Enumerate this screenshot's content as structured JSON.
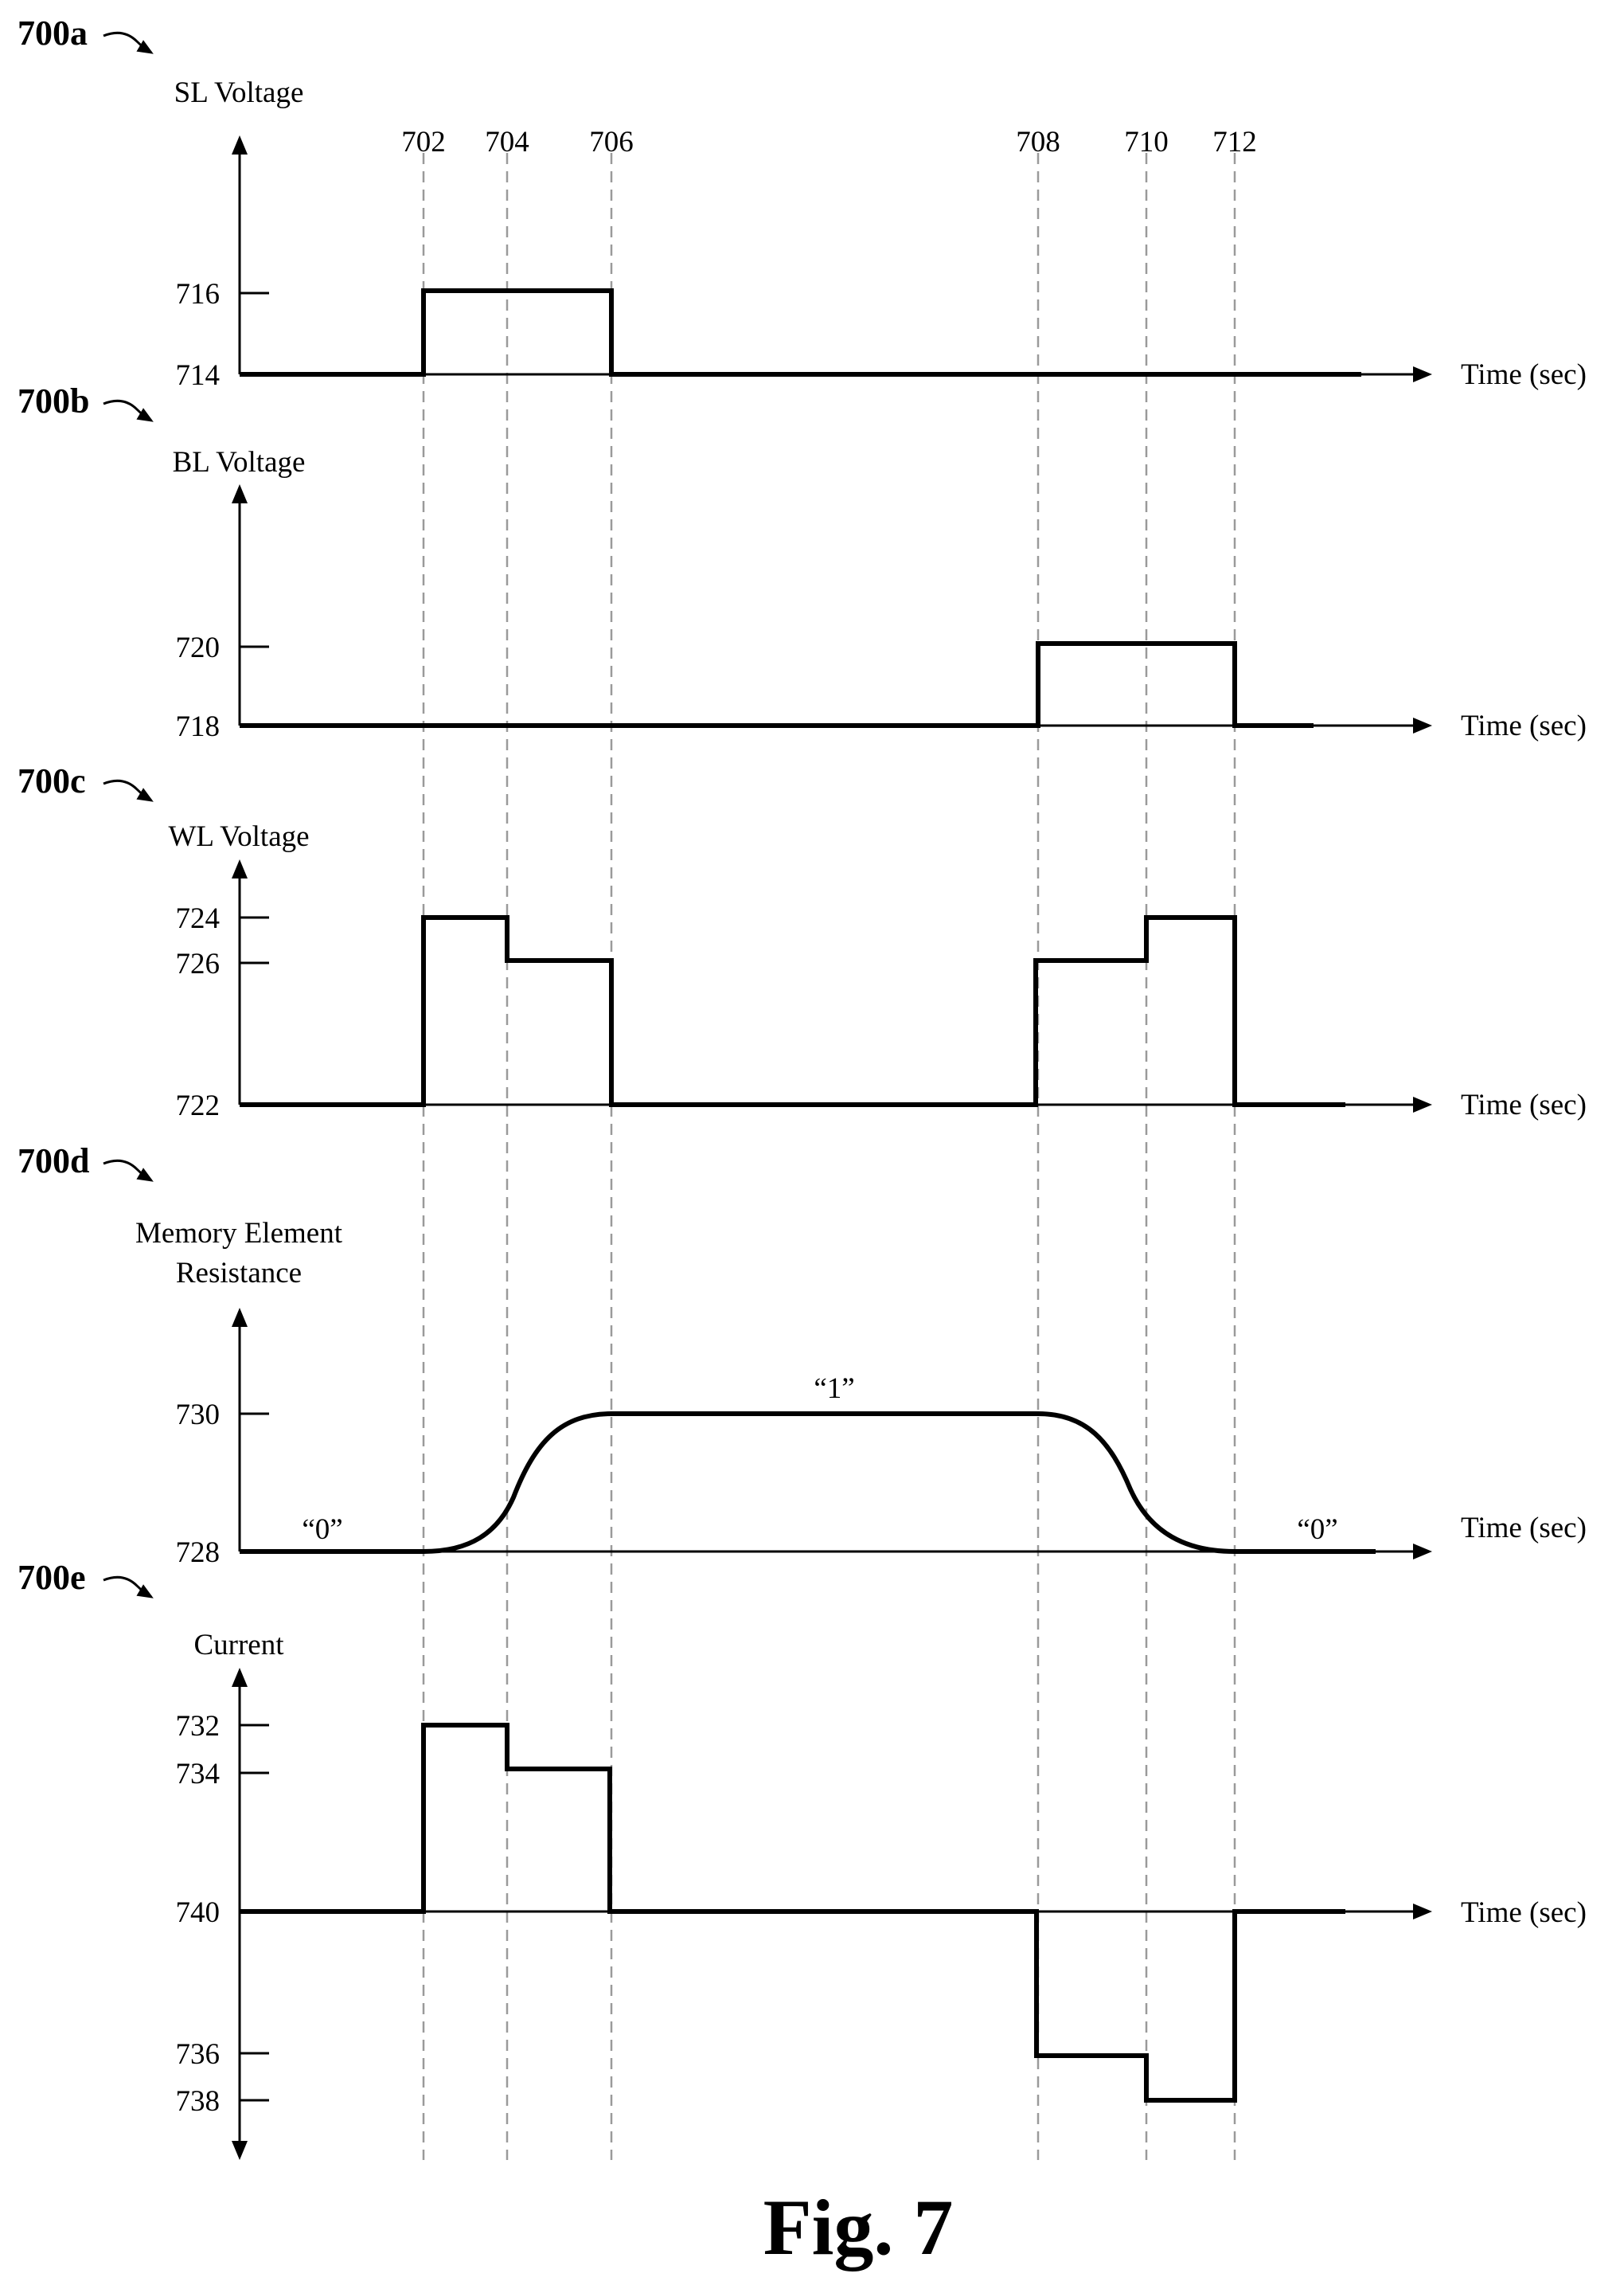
{
  "caption": "Fig. 7",
  "x_axis_label": "Time (sec)",
  "events": [
    {
      "id": "t702",
      "label": "702"
    },
    {
      "id": "t704",
      "label": "704"
    },
    {
      "id": "t706",
      "label": "706"
    },
    {
      "id": "t708",
      "label": "708"
    },
    {
      "id": "t710",
      "label": "710"
    },
    {
      "id": "t712",
      "label": "712"
    }
  ],
  "panels": [
    {
      "id": "700a",
      "label": "700a",
      "ylabel_lines": [
        "SL Voltage"
      ],
      "ticks": [
        "716",
        "714"
      ],
      "states": []
    },
    {
      "id": "700b",
      "label": "700b",
      "ylabel_lines": [
        "BL Voltage"
      ],
      "ticks": [
        "720",
        "718"
      ],
      "states": []
    },
    {
      "id": "700c",
      "label": "700c",
      "ylabel_lines": [
        "WL Voltage"
      ],
      "ticks": [
        "724",
        "726",
        "722"
      ],
      "states": []
    },
    {
      "id": "700d",
      "label": "700d",
      "ylabel_lines": [
        "Memory Element",
        "Resistance"
      ],
      "ticks": [
        "730",
        "728"
      ],
      "states": [
        "“0”",
        "“1”",
        "“0”"
      ]
    },
    {
      "id": "700e",
      "label": "700e",
      "ylabel_lines": [
        "Current"
      ],
      "ticks": [
        "732",
        "734",
        "740",
        "736",
        "738"
      ],
      "states": []
    }
  ]
}
